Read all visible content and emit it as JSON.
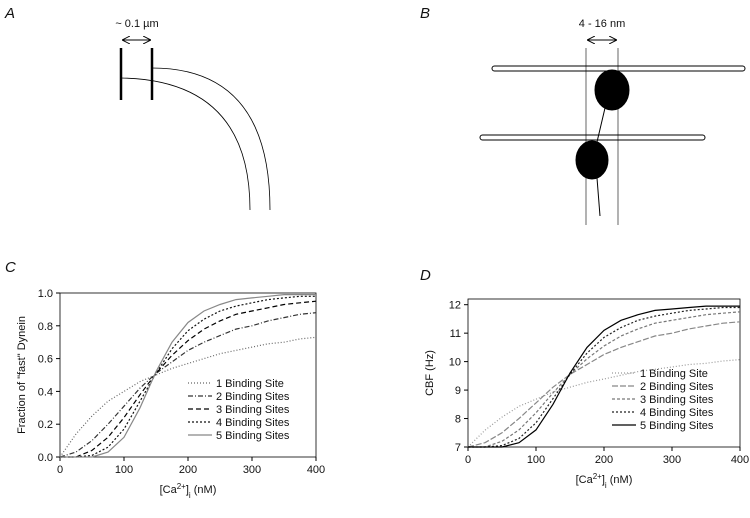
{
  "panel_labels": [
    "A",
    "B",
    "C",
    "D"
  ],
  "diagram_a": {
    "label": "~ 0.1 µm"
  },
  "diagram_b": {
    "label": "4 - 16 nm"
  },
  "chart_data": [
    {
      "type": "line",
      "y_label": "Fraction of \"fast\" Dynein",
      "x_label_parts": [
        "[Ca",
        "2+",
        "]",
        "i",
        " (nM)"
      ],
      "x": [
        0,
        25,
        50,
        75,
        100,
        125,
        150,
        175,
        200,
        225,
        250,
        275,
        300,
        325,
        350,
        375,
        400
      ],
      "xlim": [
        0,
        400
      ],
      "xticks": [
        0,
        100,
        200,
        300,
        400
      ],
      "ylim": [
        0,
        1
      ],
      "yticks": [
        {
          "value": 0,
          "label": "0.0"
        },
        0.2,
        0.4,
        0.6,
        0.8,
        {
          "value": 1,
          "label": "1.0"
        }
      ],
      "legend": "lower right",
      "series": [
        {
          "name": "1 Binding Site",
          "color": "#666666",
          "dash": "1,2",
          "values": [
            0,
            0.14,
            0.25,
            0.34,
            0.4,
            0.46,
            0.5,
            0.54,
            0.57,
            0.6,
            0.63,
            0.65,
            0.67,
            0.69,
            0.7,
            0.72,
            0.73
          ]
        },
        {
          "name": "2 Binding Sites",
          "color": "#333333",
          "dash": "5,2,1,2",
          "values": [
            0,
            0.03,
            0.1,
            0.2,
            0.31,
            0.42,
            0.51,
            0.58,
            0.65,
            0.7,
            0.74,
            0.78,
            0.8,
            0.83,
            0.85,
            0.87,
            0.88
          ]
        },
        {
          "name": "3 Binding Sites",
          "color": "#000000",
          "dash": "5,3",
          "values": [
            0,
            0.0,
            0.04,
            0.12,
            0.24,
            0.38,
            0.51,
            0.62,
            0.71,
            0.78,
            0.83,
            0.87,
            0.89,
            0.91,
            0.93,
            0.94,
            0.95
          ]
        },
        {
          "name": "4 Binding Sites",
          "color": "#111111",
          "dash": "2,2",
          "values": [
            0,
            0.0,
            0.01,
            0.06,
            0.17,
            0.34,
            0.51,
            0.66,
            0.77,
            0.84,
            0.89,
            0.92,
            0.94,
            0.96,
            0.97,
            0.98,
            0.98
          ]
        },
        {
          "name": "5 Binding Sites",
          "color": "#888888",
          "dash": "",
          "values": [
            0,
            0.0,
            0.0,
            0.03,
            0.12,
            0.3,
            0.52,
            0.7,
            0.82,
            0.89,
            0.93,
            0.96,
            0.97,
            0.98,
            0.99,
            0.99,
            0.99
          ]
        }
      ]
    },
    {
      "type": "line",
      "y_label": "CBF (Hz)",
      "x_label_parts": [
        "[Ca",
        "2+",
        "]",
        "i",
        " (nM)"
      ],
      "x": [
        0,
        25,
        50,
        75,
        100,
        125,
        150,
        175,
        200,
        225,
        250,
        275,
        300,
        325,
        350,
        375,
        400
      ],
      "xlim": [
        0,
        400
      ],
      "xticks": [
        0,
        100,
        200,
        300,
        400
      ],
      "ylim": [
        7,
        12.2
      ],
      "yticks": [
        7,
        8,
        9,
        10,
        11,
        12
      ],
      "legend": "lower right",
      "series": [
        {
          "name": "1 Binding Site",
          "color": "#999999",
          "dash": "1,2",
          "values": [
            7,
            7.59,
            8.05,
            8.43,
            8.68,
            8.93,
            9.1,
            9.27,
            9.39,
            9.52,
            9.65,
            9.73,
            9.81,
            9.9,
            9.94,
            10.02,
            10.07
          ]
        },
        {
          "name": "2 Binding Sites",
          "color": "#888888",
          "dash": "6,2",
          "values": [
            7,
            7.15,
            7.5,
            8,
            8.55,
            9.1,
            9.55,
            9.9,
            10.25,
            10.5,
            10.7,
            10.9,
            11,
            11.15,
            11.25,
            11.35,
            11.4
          ]
        },
        {
          "name": "3 Binding Sites",
          "color": "#777777",
          "dash": "3,2",
          "values": [
            7,
            7,
            7.2,
            7.6,
            8.2,
            8.9,
            9.55,
            10.1,
            10.55,
            10.9,
            11.15,
            11.35,
            11.45,
            11.55,
            11.65,
            11.7,
            11.75
          ]
        },
        {
          "name": "4 Binding Sites",
          "color": "#222222",
          "dash": "2,2",
          "values": [
            7,
            7,
            7.05,
            7.3,
            7.85,
            8.7,
            9.55,
            10.3,
            10.85,
            11.2,
            11.45,
            11.6,
            11.7,
            11.8,
            11.85,
            11.9,
            11.9
          ]
        },
        {
          "name": "5 Binding Sites",
          "color": "#000000",
          "dash": "",
          "values": [
            7,
            7,
            7,
            7.15,
            7.6,
            8.5,
            9.6,
            10.5,
            11.1,
            11.45,
            11.65,
            11.8,
            11.85,
            11.9,
            11.95,
            11.95,
            11.95
          ]
        }
      ]
    }
  ]
}
